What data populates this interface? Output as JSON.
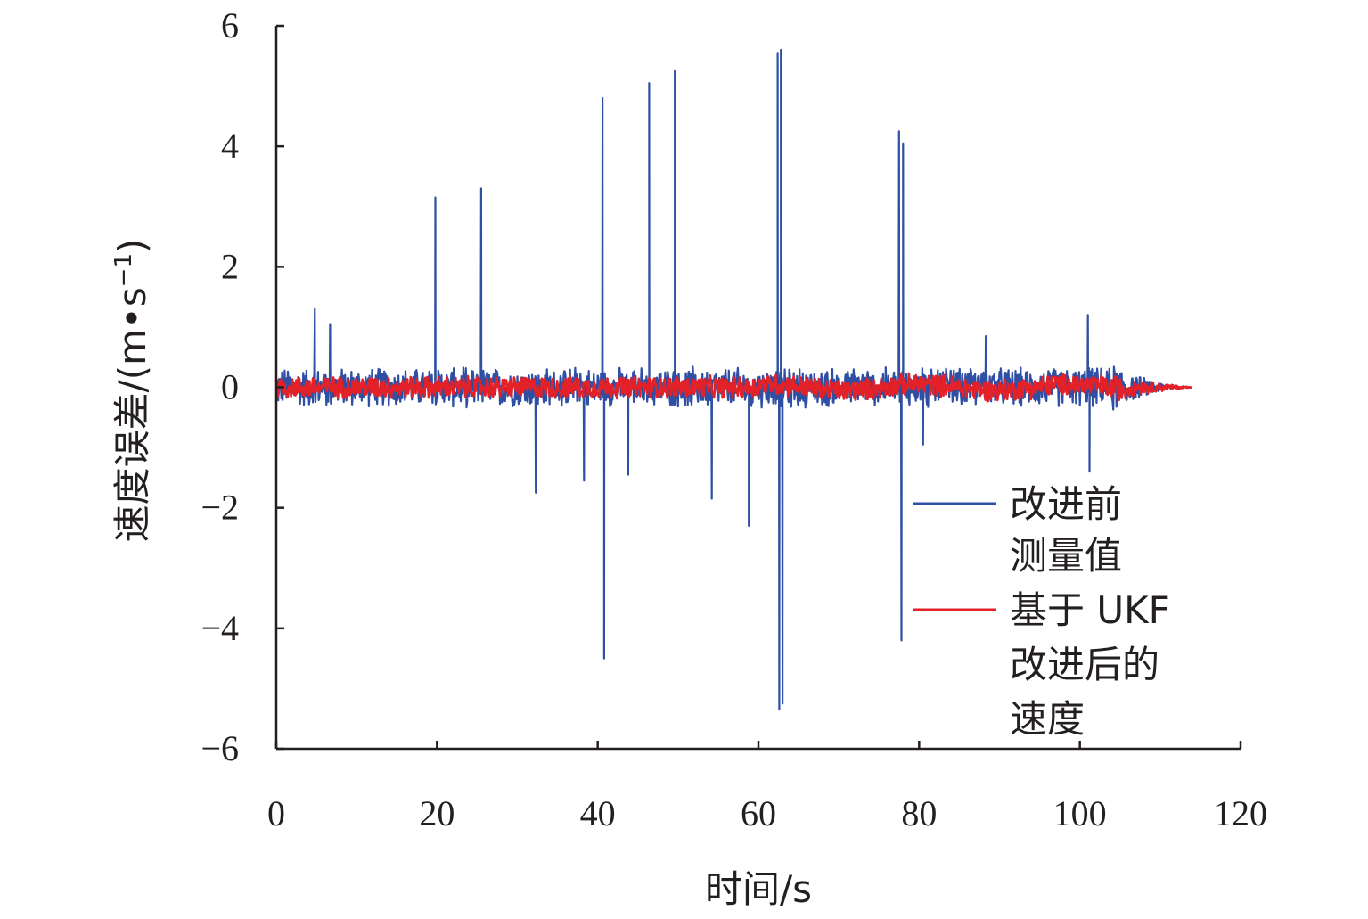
{
  "chart_data": {
    "type": "line",
    "title": "",
    "xlabel": "时间/s",
    "ylabel": "速度误差/(m•s",
    "ylabel_sup": "−1",
    "ylabel_close": ")",
    "xlim": [
      0,
      120
    ],
    "ylim": [
      -6,
      6
    ],
    "x_ticks": [
      0,
      20,
      40,
      60,
      80,
      100,
      120
    ],
    "x_tick_labels": [
      "0",
      "20",
      "40",
      "60",
      "80",
      "100",
      "120"
    ],
    "y_ticks": [
      6,
      4,
      2,
      0,
      -2,
      -4,
      -6
    ],
    "y_tick_labels": [
      "6",
      "4",
      "2",
      "0",
      "−2",
      "−4",
      "−6"
    ],
    "grid": false,
    "legend_position": "lower-right",
    "series": [
      {
        "name": "改进前测量值",
        "legend_lines": [
          "改进前",
          "测量值"
        ],
        "color": "#2e4fa3",
        "noise_amplitude": 0.35,
        "x_end": 112,
        "spikes": [
          {
            "x": 4.8,
            "y": 1.3
          },
          {
            "x": 6.7,
            "y": 1.05
          },
          {
            "x": 19.8,
            "y": 3.15
          },
          {
            "x": 25.5,
            "y": 3.3
          },
          {
            "x": 32.3,
            "y": -1.75
          },
          {
            "x": 38.3,
            "y": -1.55
          },
          {
            "x": 40.6,
            "y": 4.8
          },
          {
            "x": 40.8,
            "y": -4.5
          },
          {
            "x": 43.8,
            "y": -1.45
          },
          {
            "x": 46.4,
            "y": 5.05
          },
          {
            "x": 49.6,
            "y": 5.25
          },
          {
            "x": 54.2,
            "y": -1.85
          },
          {
            "x": 58.8,
            "y": -2.3
          },
          {
            "x": 62.4,
            "y": 5.55
          },
          {
            "x": 62.6,
            "y": -5.35
          },
          {
            "x": 62.8,
            "y": 5.6
          },
          {
            "x": 63.0,
            "y": -5.25
          },
          {
            "x": 77.5,
            "y": 4.25
          },
          {
            "x": 77.8,
            "y": -4.2
          },
          {
            "x": 78.0,
            "y": 4.05
          },
          {
            "x": 80.5,
            "y": -0.95
          },
          {
            "x": 88.3,
            "y": 0.85
          },
          {
            "x": 101.0,
            "y": 1.2
          },
          {
            "x": 101.2,
            "y": -1.4
          }
        ]
      },
      {
        "name": "基于 UKF改进后的速度",
        "legend_lines": [
          "基于 UKF",
          "改进后的",
          "速度"
        ],
        "color": "#e32129",
        "noise_amplitude": 0.2,
        "x_end": 114
      }
    ]
  }
}
